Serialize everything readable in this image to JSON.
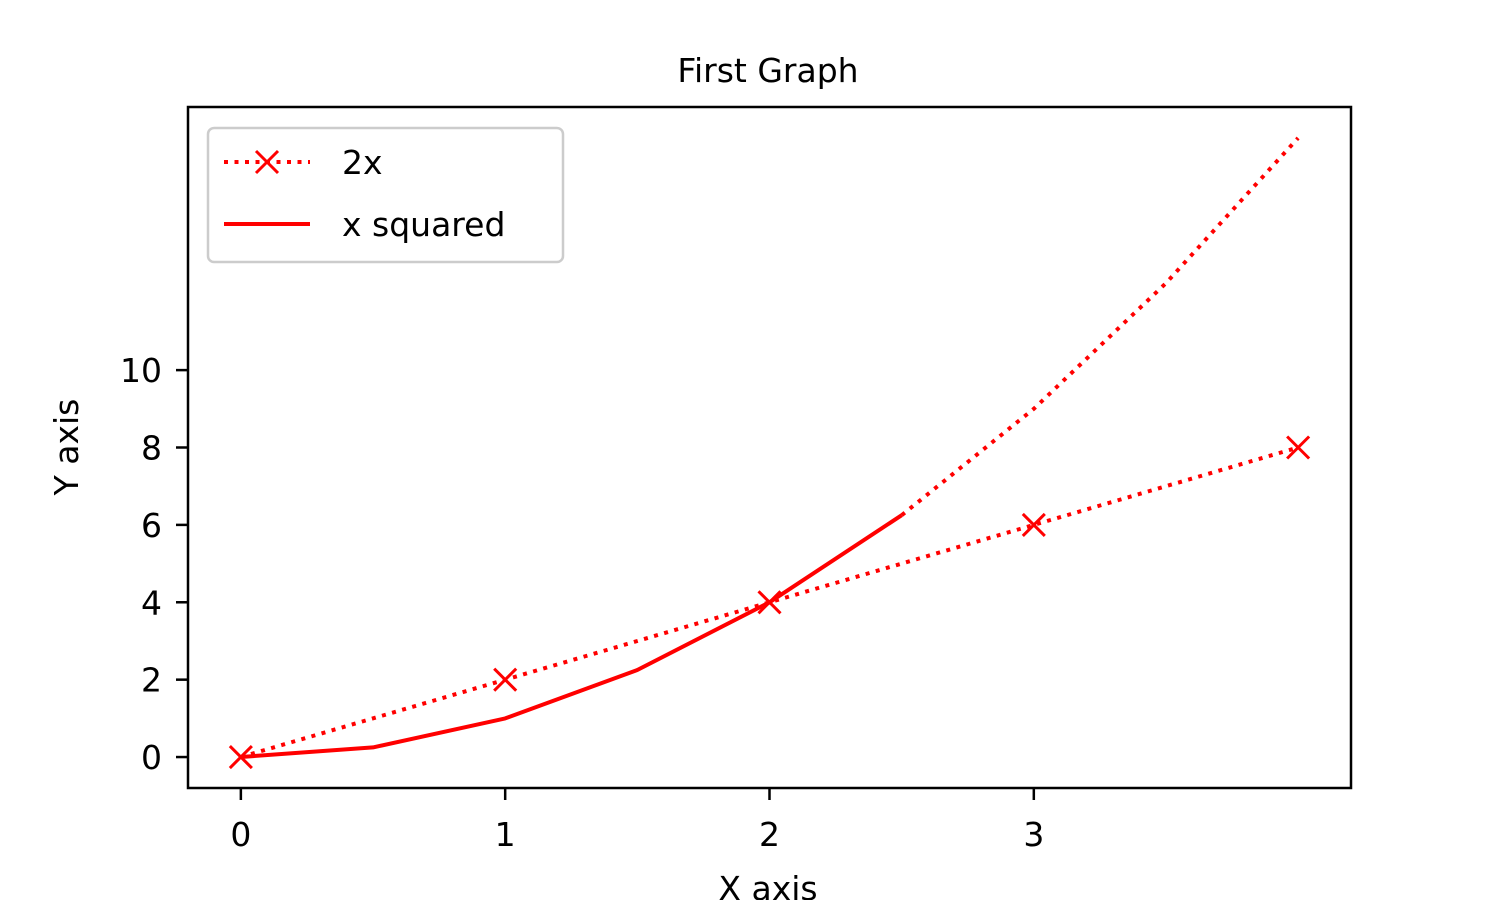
{
  "chart_data": {
    "type": "line",
    "title": "First Graph",
    "xlabel": "X axis",
    "ylabel": "Y axis",
    "xlim": [
      -0.2,
      4.2
    ],
    "ylim": [
      -0.8,
      16.8
    ],
    "xticks": [
      0,
      1,
      2,
      3
    ],
    "xtick_labels": [
      "0",
      "1",
      "2",
      "3"
    ],
    "yticks": [
      0,
      2,
      4,
      6,
      8,
      10
    ],
    "ytick_labels": [
      "0",
      "2",
      "4",
      "6",
      "8",
      "10"
    ],
    "grid": false,
    "legend_position": "top-left",
    "series": [
      {
        "name": "2x",
        "x": [
          0,
          1,
          2,
          3,
          4
        ],
        "y": [
          0,
          2,
          4,
          6,
          8
        ],
        "color": "#ff0000",
        "linestyle": "dotted",
        "marker": "x"
      },
      {
        "name": "x squared",
        "x": [
          0,
          0.5,
          1,
          1.5,
          2,
          2.5
        ],
        "y": [
          0,
          0.25,
          1,
          2.25,
          4,
          6.25
        ],
        "color": "#ff0000",
        "linestyle": "solid",
        "marker": "none"
      },
      {
        "x": [
          2.5,
          3,
          3.5,
          4
        ],
        "y": [
          6.25,
          9,
          12.25,
          16
        ],
        "color": "#ff0000",
        "linestyle": "dotted",
        "marker": "none"
      }
    ]
  }
}
